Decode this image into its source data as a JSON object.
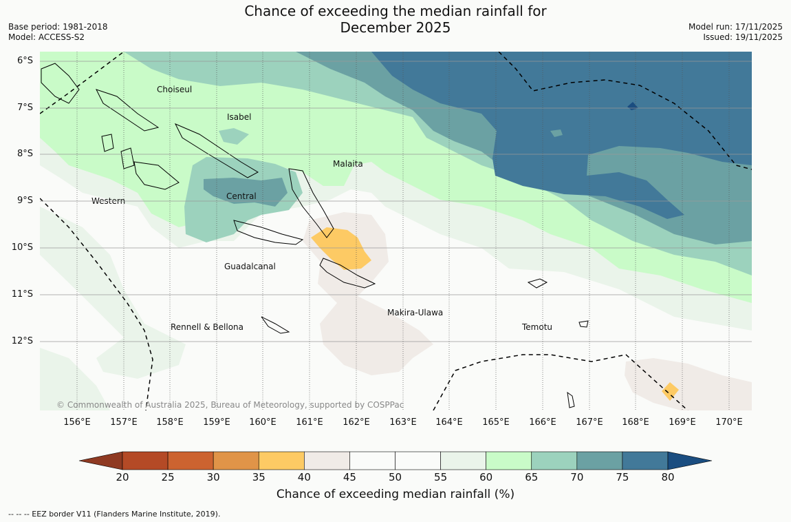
{
  "title": {
    "line1": "Chance of exceeding the median rainfall for",
    "line2": "December 2025"
  },
  "meta": {
    "base_period": "Base period: 1981-2018",
    "model": "Model: ACCESS-S2",
    "model_run": "Model run: 17/11/2025",
    "issued": "Issued: 19/11/2025"
  },
  "axes": {
    "lat_labels": [
      "6°S",
      "7°S",
      "8°S",
      "9°S",
      "10°S",
      "11°S",
      "12°S"
    ],
    "lon_labels": [
      "156°E",
      "157°E",
      "158°E",
      "159°E",
      "160°E",
      "161°E",
      "162°E",
      "163°E",
      "164°E",
      "165°E",
      "166°E",
      "167°E",
      "168°E",
      "169°E",
      "170°E"
    ]
  },
  "regions": {
    "choiseul": "Choiseul",
    "isabel": "Isabel",
    "malaita": "Malaita",
    "western": "Western",
    "central": "Central",
    "guadalcanal": "Guadalcanal",
    "makira": "Makira-Ulawa",
    "rennell": "Rennell & Bellona",
    "temotu": "Temotu"
  },
  "copyright": "© Commonwealth of Australia 2025, Bureau of Meteorology, supported by COSPPac",
  "colorbar": {
    "title": "Chance of exceeding median rainfall (%)",
    "ticks": [
      "20",
      "25",
      "30",
      "35",
      "40",
      "45",
      "50",
      "55",
      "60",
      "65",
      "70",
      "75",
      "80"
    ],
    "colors": {
      "below20": "#8f3a22",
      "c20_25": "#b44a26",
      "c25_30": "#cc6330",
      "c30_35": "#e09448",
      "c35_40": "#fdca64",
      "c40_45": "#f0ebe7",
      "c45_50": "#fafbf9",
      "c50_55": "#fafbf9",
      "c55_60": "#eaf4ea",
      "c60_65": "#c9fbc8",
      "c65_70": "#9cd2bd",
      "c70_75": "#6ba1a3",
      "c75_80": "#427999",
      "above80": "#1a4d80"
    }
  },
  "footnote": "--  --  -- EEZ border V11 (Flanders Marine Institute, 2019)."
}
